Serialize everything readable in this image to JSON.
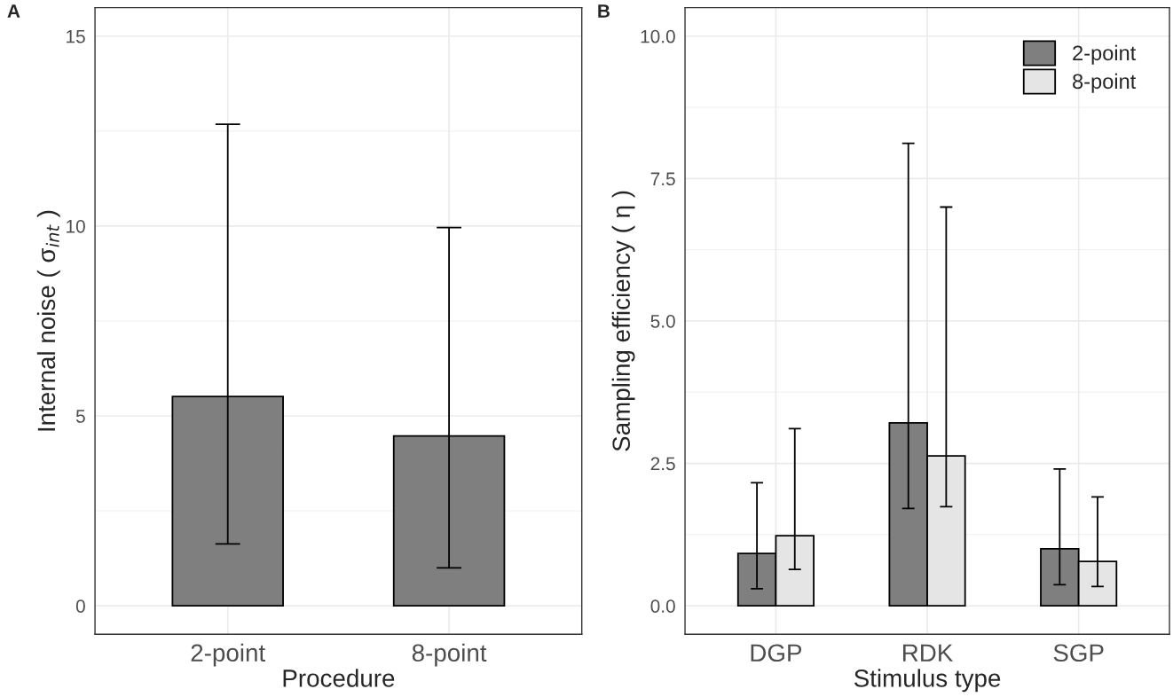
{
  "chart_data": [
    {
      "type": "bar",
      "title": "A",
      "xlabel": "Procedure",
      "ylabel": "Internal noise ( σ$_{int}$ )",
      "categories": [
        "2-point",
        "8-point"
      ],
      "values": [
        5.51,
        4.47
      ],
      "color": "#7f7f7f",
      "errors": [
        [
          1.63,
          12.68
        ],
        [
          1.0,
          9.96
        ]
      ],
      "ylim": [
        -0.75,
        15.75
      ],
      "yticks": [
        0,
        5,
        10,
        15
      ],
      "grid": true,
      "legend": false
    },
    {
      "type": "bar",
      "title": "B",
      "xlabel": "Stimulus type",
      "ylabel": "Sampling efficiency ( η )",
      "categories": [
        "DGP",
        "RDK",
        "SGP"
      ],
      "series": [
        {
          "name": "2-point",
          "color": "#7f7f7f",
          "values": [
            0.92,
            3.21,
            1.0
          ],
          "errors": [
            [
              0.3,
              2.16
            ],
            [
              1.71,
              8.12
            ],
            [
              0.37,
              2.4
            ]
          ]
        },
        {
          "name": "8-point",
          "color": "#e5e5e5",
          "values": [
            1.23,
            2.63,
            0.78
          ],
          "errors": [
            [
              0.64,
              3.11
            ],
            [
              1.74,
              7.0
            ],
            [
              0.34,
              1.91
            ]
          ]
        }
      ],
      "ylim": [
        -0.5,
        10.5
      ],
      "yticks": [
        {
          "value": 0,
          "label": "0.0"
        },
        {
          "value": 2.5,
          "label": "2.5"
        },
        {
          "value": 5,
          "label": "5.0"
        },
        {
          "value": 7.5,
          "label": "7.5"
        },
        {
          "value": 10,
          "label": "10.0"
        }
      ],
      "grid": true,
      "legend": "top right"
    }
  ]
}
